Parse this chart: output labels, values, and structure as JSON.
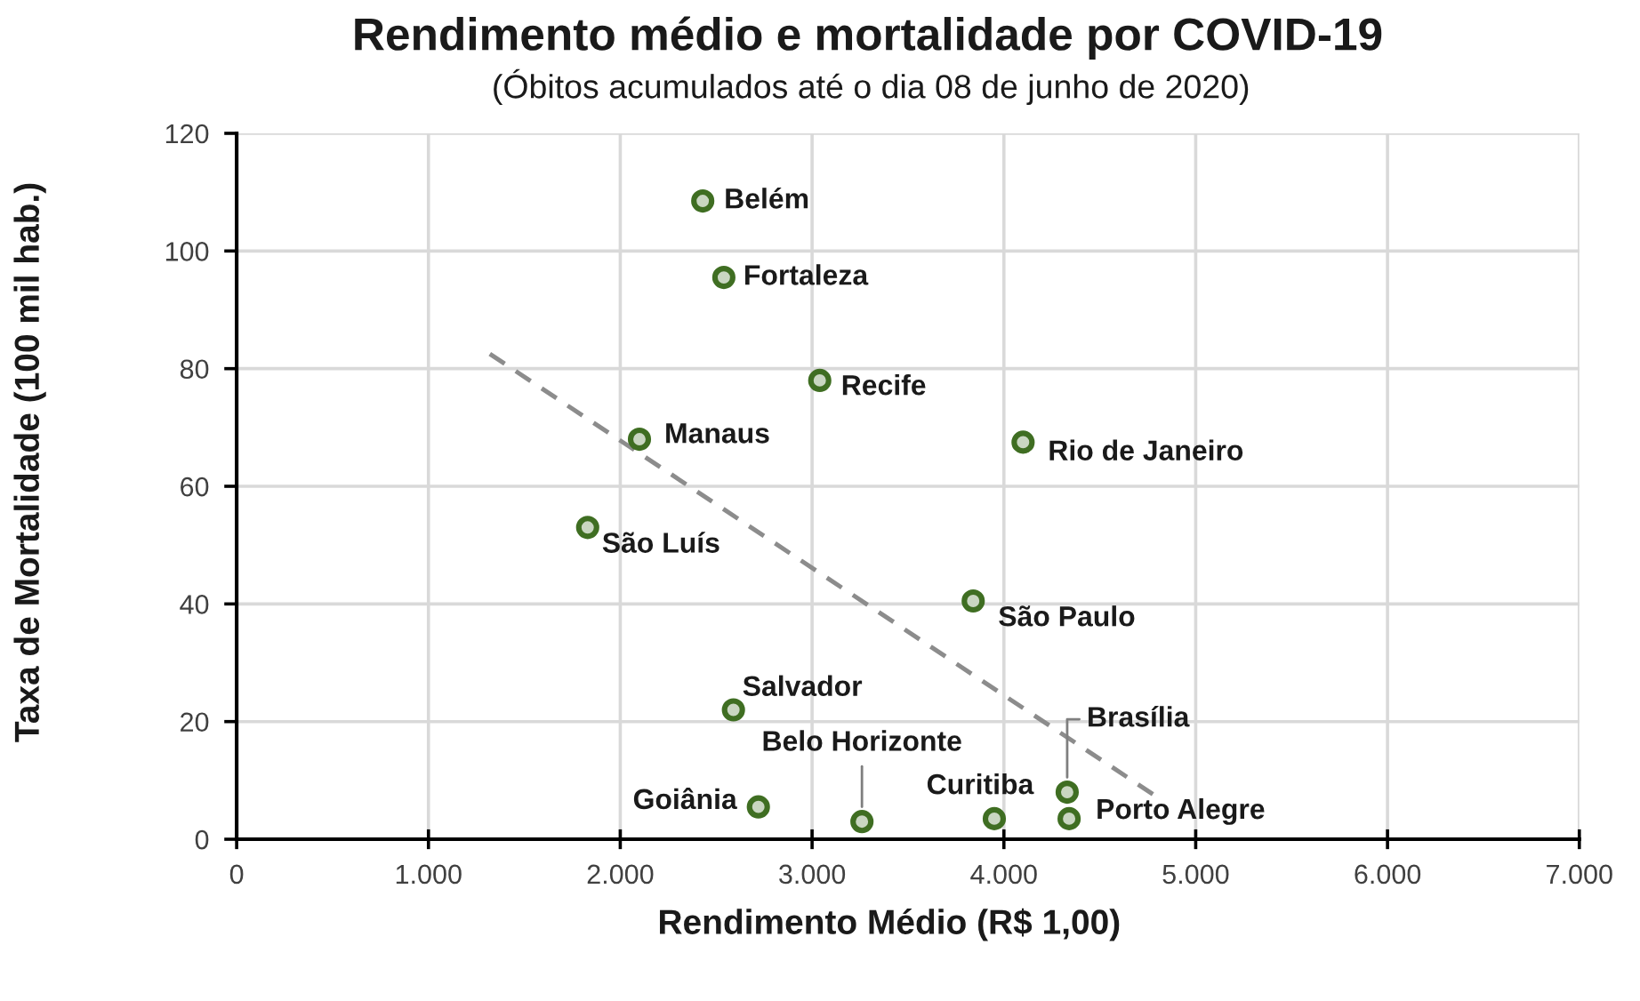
{
  "chart_data": {
    "type": "scatter",
    "title": "Rendimento médio e mortalidade por COVID-19",
    "subtitle": "(Óbitos acumulados até o dia 08 de junho de 2020)",
    "xlabel": "Rendimento Médio (R$ 1,00)",
    "ylabel": "Taxa de Mortalidade (100 mil hab.)",
    "series": [
      {
        "color": "#3f6e22",
        "marker": "circle",
        "x": [
          2430,
          2540,
          3040,
          2100,
          4100,
          1830,
          3840,
          2590,
          2720,
          3260,
          3950,
          4330,
          4340
        ],
        "values": [
          108.5,
          95.5,
          78,
          68,
          67.5,
          53,
          40.5,
          22,
          5.5,
          3,
          3.5,
          8,
          3.5
        ]
      },
      {
        "type": "line",
        "color": "#8c8c8c",
        "line_style": "dashed",
        "marker": "none",
        "x": [
          1320,
          4830
        ],
        "values": [
          82.5,
          6.5
        ]
      }
    ],
    "xlim": [
      0,
      7000
    ],
    "ylim": [
      0,
      120
    ],
    "xticks": [
      0,
      {
        "value": 1000,
        "label": "1.000"
      },
      {
        "value": 2000,
        "label": "2.000"
      },
      {
        "value": 3000,
        "label": "3.000"
      },
      {
        "value": 4000,
        "label": "4.000"
      },
      {
        "value": 5000,
        "label": "5.000"
      },
      {
        "value": 6000,
        "label": "6.000"
      },
      {
        "value": 7000,
        "label": "7.000"
      }
    ],
    "yticks": [
      0,
      20,
      40,
      60,
      80,
      100,
      120
    ],
    "grid": true,
    "annotations": [
      {
        "text": "Belém",
        "x": 2430,
        "y": 108.5
      },
      {
        "text": "Fortaleza",
        "x": 2540,
        "y": 95.5
      },
      {
        "text": "Recife",
        "x": 3040,
        "y": 78
      },
      {
        "text": "Manaus",
        "x": 2100,
        "y": 68
      },
      {
        "text": "Rio de Janeiro",
        "x": 4100,
        "y": 67.5
      },
      {
        "text": "São Luís",
        "x": 1830,
        "y": 53
      },
      {
        "text": "São Paulo",
        "x": 3840,
        "y": 40.5
      },
      {
        "text": "Salvador",
        "x": 2590,
        "y": 22
      },
      {
        "text": "Goiânia",
        "x": 2720,
        "y": 5.5
      },
      {
        "text": "Belo Horizonte",
        "x": 3260,
        "y": 3
      },
      {
        "text": "Curitiba",
        "x": 3950,
        "y": 3.5
      },
      {
        "text": "Brasília",
        "x": 4330,
        "y": 8
      },
      {
        "text": "Porto Alegre",
        "x": 4340,
        "y": 3.5
      }
    ]
  }
}
